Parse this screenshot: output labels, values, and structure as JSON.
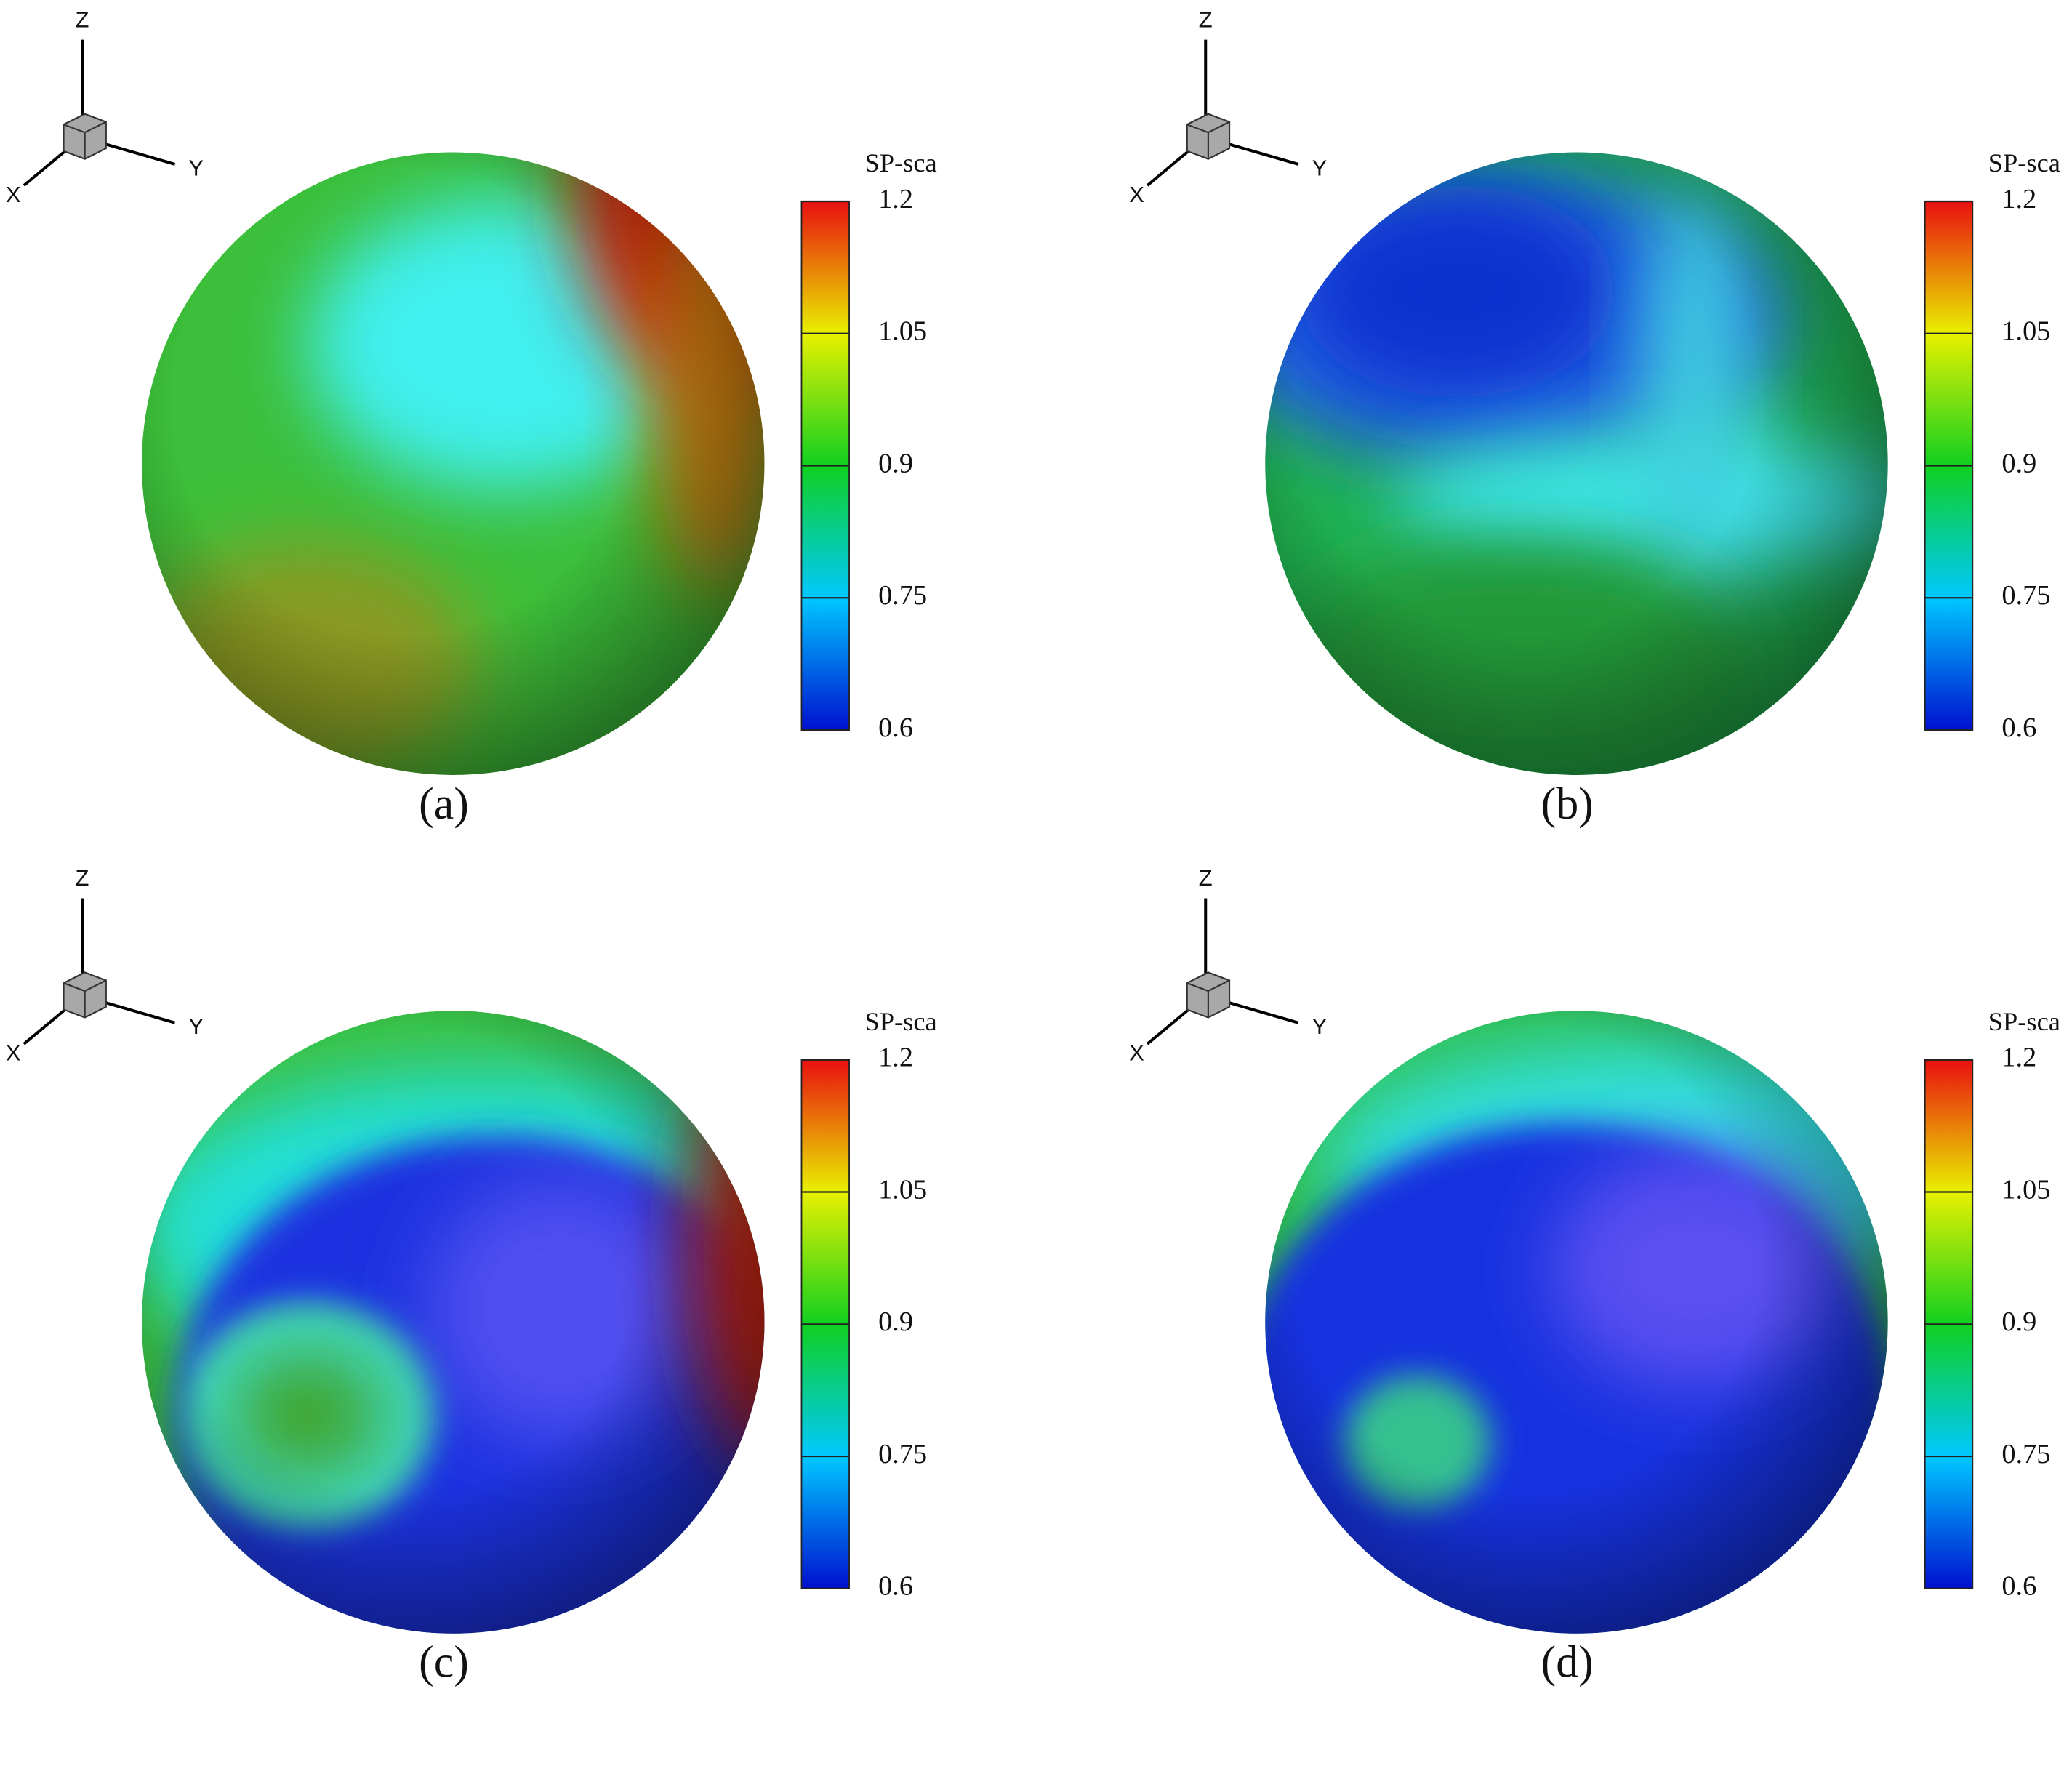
{
  "panels": [
    {
      "label": "(a)",
      "axes": {
        "x": "X",
        "y": "Y",
        "z": "Z"
      },
      "colorbar": {
        "title": "SP-sca",
        "ticks": [
          0.6,
          0.75,
          0.9,
          1.05,
          1.2
        ]
      }
    },
    {
      "label": "(b)",
      "axes": {
        "x": "X",
        "y": "Y",
        "z": "Z"
      },
      "colorbar": {
        "title": "SP-sca",
        "ticks": [
          0.6,
          0.75,
          0.9,
          1.05,
          1.2
        ]
      }
    },
    {
      "label": "(c)",
      "axes": {
        "x": "X",
        "y": "Y",
        "z": "Z"
      },
      "colorbar": {
        "title": "SP-sca",
        "ticks": [
          0.6,
          0.75,
          0.9,
          1.05,
          1.2
        ]
      }
    },
    {
      "label": "(d)",
      "axes": {
        "x": "X",
        "y": "Y",
        "z": "Z"
      },
      "colorbar": {
        "title": "SP-sca",
        "ticks": [
          0.6,
          0.75,
          0.9,
          1.05,
          1.2
        ]
      }
    }
  ]
}
